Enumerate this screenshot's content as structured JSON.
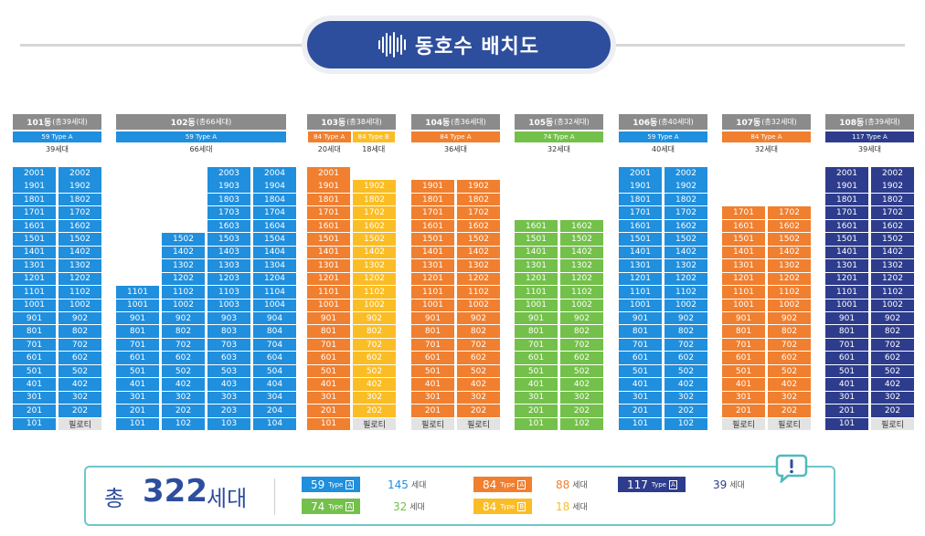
{
  "title": "동호수 배치도",
  "colors": {
    "t59": "#1f8fde",
    "t74": "#73c04a",
    "t84a": "#f07f2f",
    "t84b": "#fbbd25",
    "t117": "#2d3c8c",
    "pilotis": "#e3e3e3",
    "header": "#8b8b8b",
    "navy": "#2d4e9d"
  },
  "buildings": [
    {
      "name": "101동",
      "total": "(총39세대)",
      "types": [
        {
          "label": "59",
          "tp": "Type",
          "cls": "A",
          "color": "t59"
        }
      ],
      "counts": [
        "39세대"
      ]
    },
    {
      "name": "102동",
      "total": "(총66세대)",
      "types": [
        {
          "label": "59",
          "tp": "Type",
          "cls": "A",
          "color": "t59"
        }
      ],
      "counts": [
        "66세대"
      ]
    },
    {
      "name": "103동",
      "total": "(총38세대)",
      "types": [
        {
          "label": "84",
          "tp": "Type",
          "cls": "A",
          "color": "t84a"
        },
        {
          "label": "84",
          "tp": "Type",
          "cls": "B",
          "color": "t84b"
        }
      ],
      "counts": [
        "20세대",
        "18세대"
      ]
    },
    {
      "name": "104동",
      "total": "(총36세대)",
      "types": [
        {
          "label": "84",
          "tp": "Type",
          "cls": "A",
          "color": "t84a"
        }
      ],
      "counts": [
        "36세대"
      ]
    },
    {
      "name": "105동",
      "total": "(총32세대)",
      "types": [
        {
          "label": "74",
          "tp": "Type",
          "cls": "A",
          "color": "t74"
        }
      ],
      "counts": [
        "32세대"
      ]
    },
    {
      "name": "106동",
      "total": "(총40세대)",
      "types": [
        {
          "label": "59",
          "tp": "Type",
          "cls": "A",
          "color": "t59"
        }
      ],
      "counts": [
        "40세대"
      ]
    },
    {
      "name": "107동",
      "total": "(총32세대)",
      "types": [
        {
          "label": "84",
          "tp": "Type",
          "cls": "A",
          "color": "t84a"
        }
      ],
      "counts": [
        "32세대"
      ]
    },
    {
      "name": "108동",
      "total": "(총39세대)",
      "types": [
        {
          "label": "117",
          "tp": "Type",
          "cls": "A",
          "color": "t117"
        }
      ],
      "counts": [
        "39세대"
      ]
    }
  ],
  "pilotis_label": "필로티",
  "summary": {
    "total_label": "총",
    "total_number": "322",
    "total_unit": "세대",
    "legend": [
      {
        "type": "59",
        "tp": "Type",
        "cls": "A",
        "color": "t59",
        "count": "145",
        "unit": "세대"
      },
      {
        "type": "84",
        "tp": "Type",
        "cls": "A",
        "color": "t84a",
        "count": "88",
        "unit": "세대"
      },
      {
        "type": "117",
        "tp": "Type",
        "cls": "A",
        "color": "t117",
        "count": "39",
        "unit": "세대"
      },
      {
        "type": "74",
        "tp": "Type",
        "cls": "A",
        "color": "t74",
        "count": "32",
        "unit": "세대"
      },
      {
        "type": "84",
        "tp": "Type",
        "cls": "B",
        "color": "t84b",
        "count": "18",
        "unit": "세대"
      }
    ]
  },
  "notice_icon": "exclamation-speech-bubble-icon",
  "title_icon": "sound-wave-icon"
}
